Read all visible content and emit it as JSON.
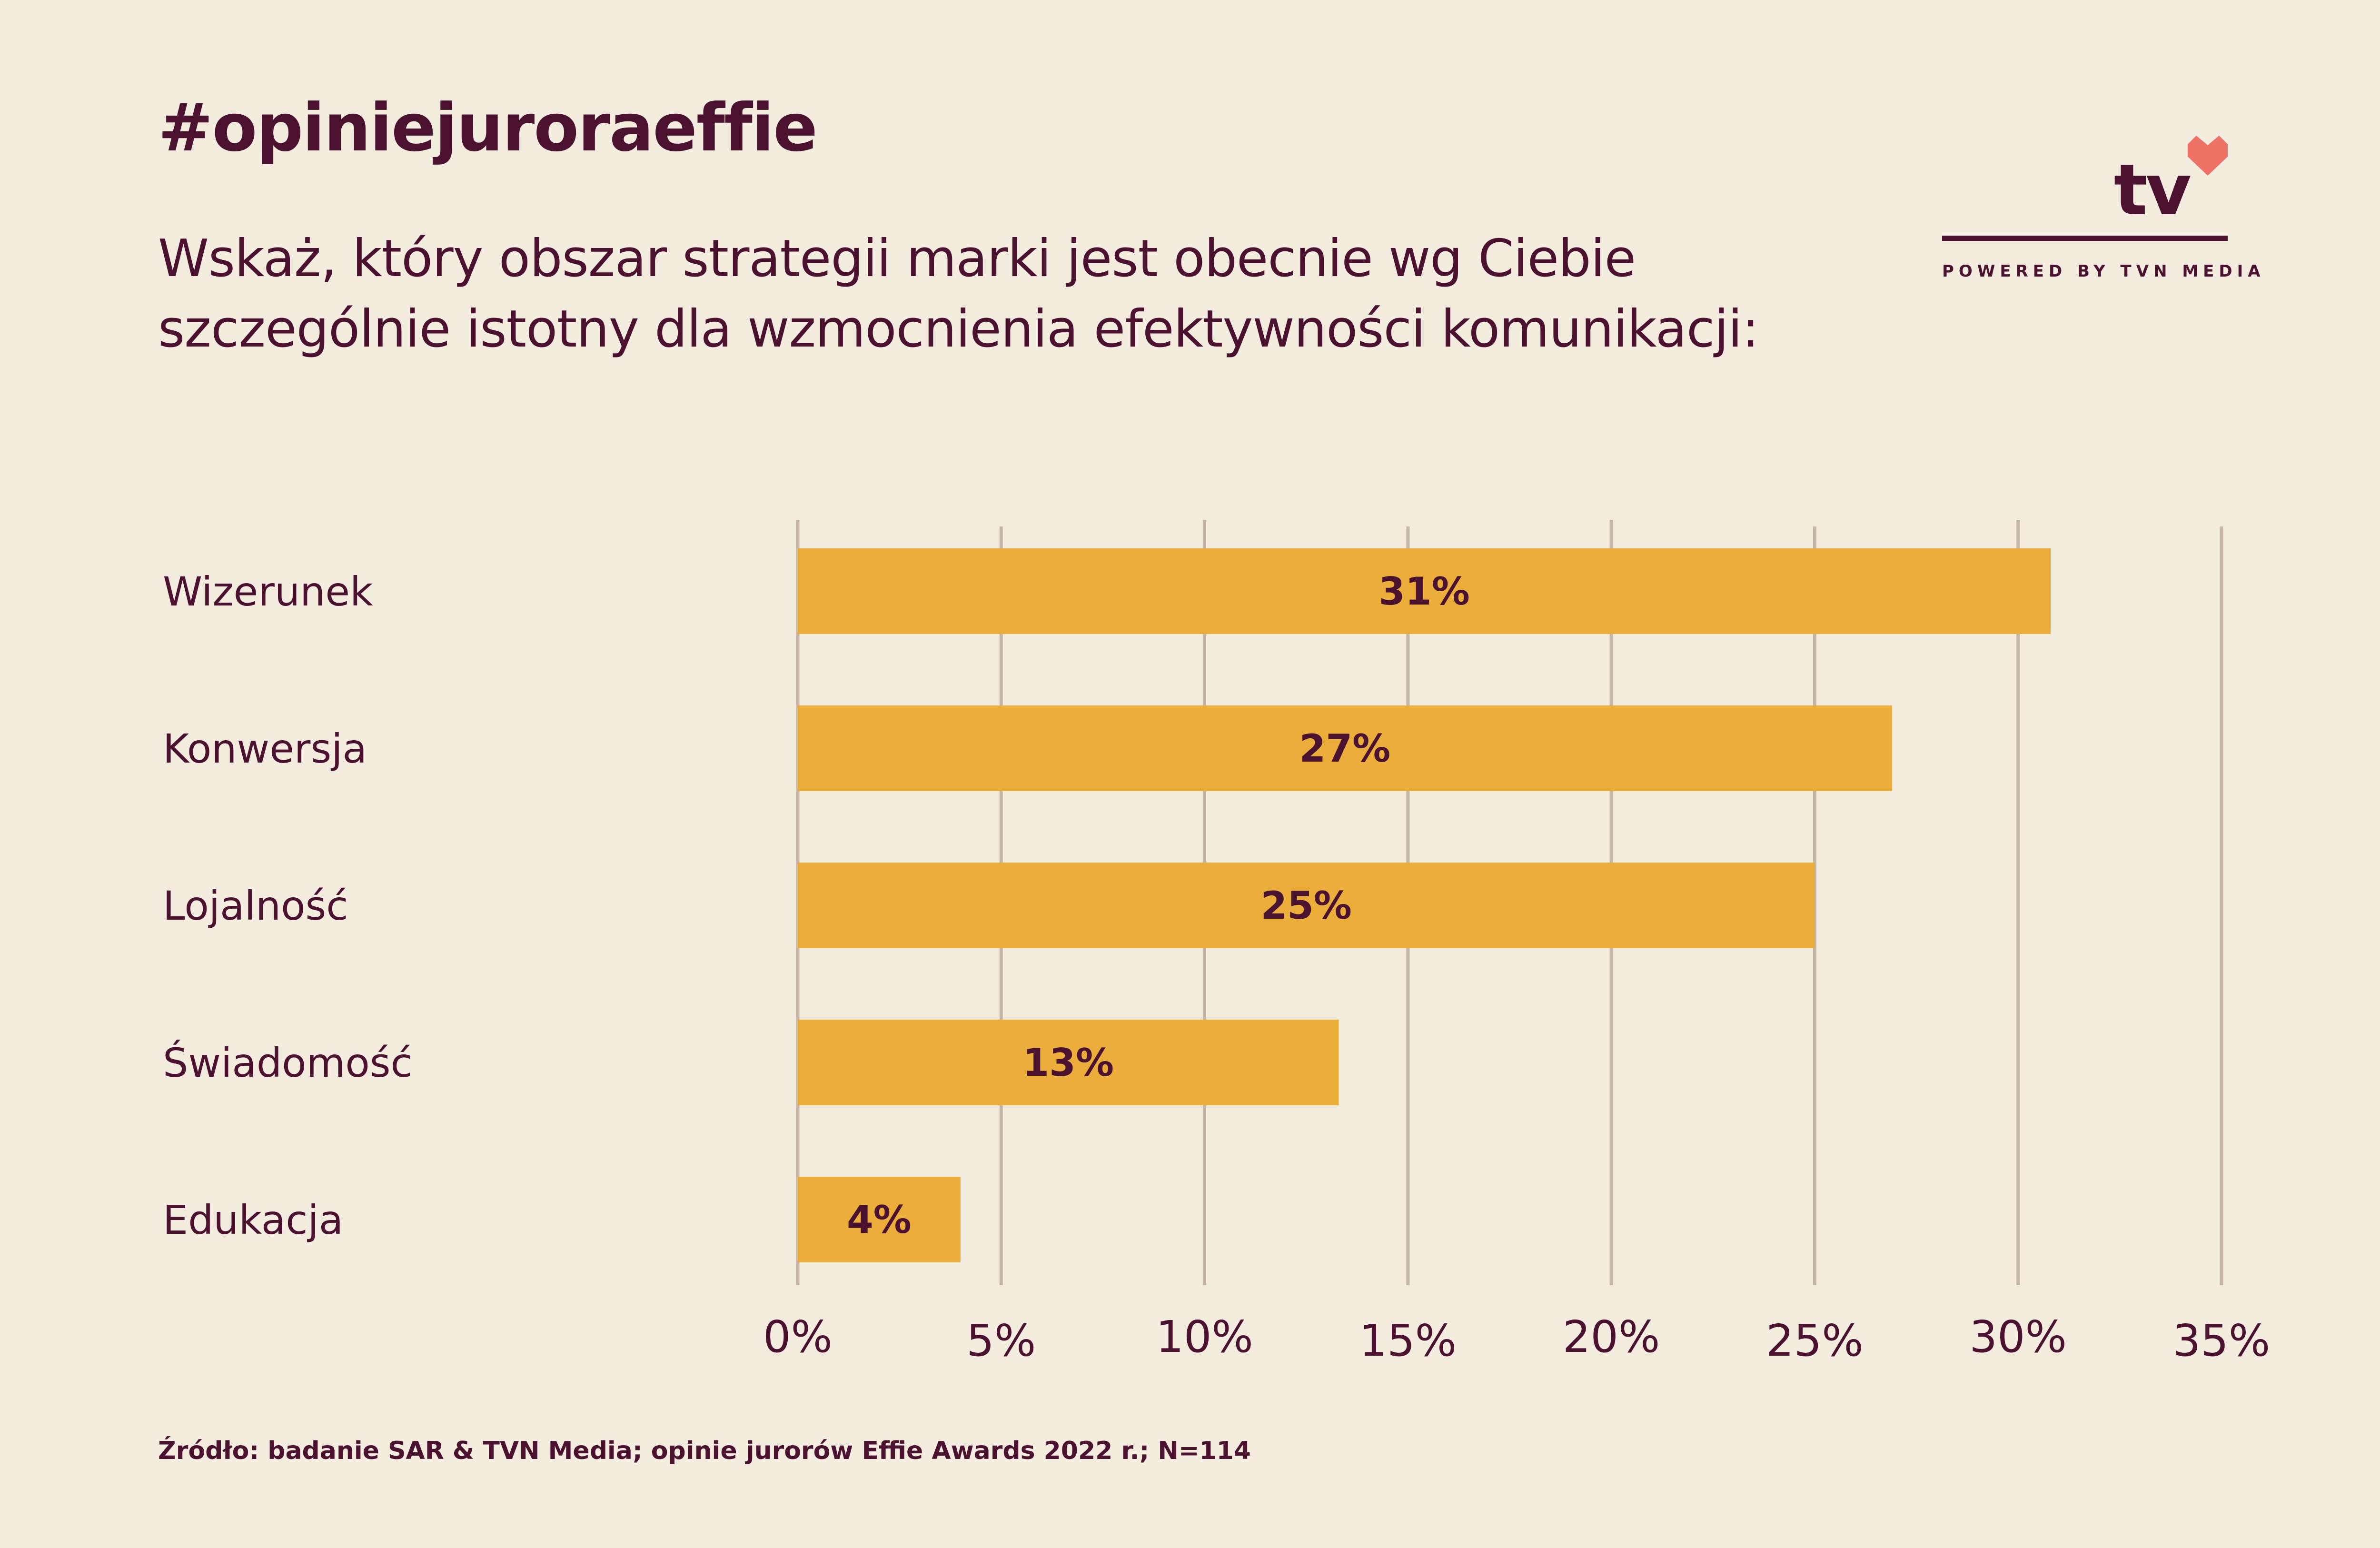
{
  "header": {
    "hashtag": "#opiniejuroraeffie",
    "question_line1": "Wskaż, który obszar strategii marki jest obecnie wg Ciebie",
    "question_line2": "szczególnie istotny dla wzmocnienia efektywności komunikacji:"
  },
  "logo": {
    "text": "tv",
    "tagline": "POWERED BY TVN MEDIA",
    "icon": "heart-icon"
  },
  "chart_data": {
    "type": "bar",
    "orientation": "horizontal",
    "categories": [
      "Wizerunek",
      "Konwersja",
      "Lojalność",
      "Świadomość",
      "Edukacja"
    ],
    "values": [
      30.8,
      26.9,
      25.0,
      13.3,
      4.0
    ],
    "data_labels": [
      "31%",
      "27%",
      "25%",
      "13%",
      "4%"
    ],
    "xlim": [
      0,
      35
    ],
    "xticks": [
      0,
      5,
      10,
      15,
      20,
      25,
      30,
      35
    ],
    "xtick_labels": [
      "0%",
      "5%",
      "10%",
      "15%",
      "20%",
      "25%",
      "30%",
      "35%"
    ],
    "grid": "vertical",
    "legend": "none",
    "title": "",
    "xlabel": "",
    "ylabel": ""
  },
  "source": "Źródło: badanie SAR & TVN Media; opinie jurorów Effie Awards 2022 r.; N=114",
  "colors": {
    "background": "#f4ecdf",
    "text": "#4b1230",
    "bar": "#ebae3a",
    "grid": "#c4b6a8",
    "heart": "#ee7366"
  }
}
